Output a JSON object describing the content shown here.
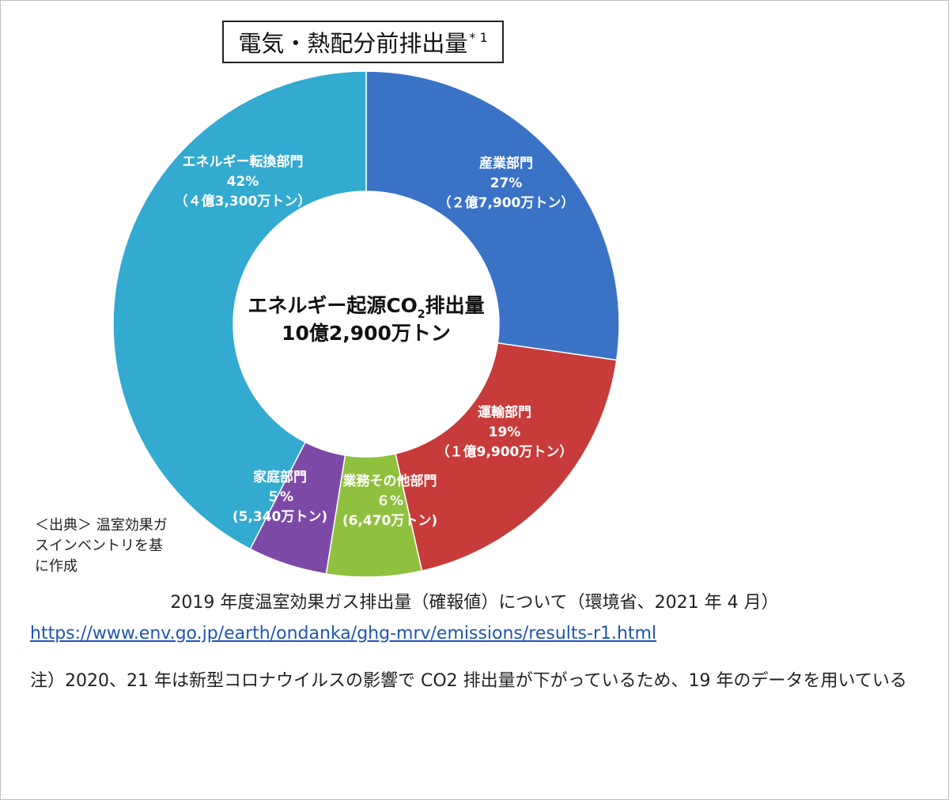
{
  "chart_title": "電気・熱配分前排出量",
  "chart_title_note": "* 1",
  "chart_data": {
    "type": "pie",
    "title": "電気・熱配分前排出量",
    "center_label_line1_a": "エネルギー起源CO",
    "center_label_line1_sub": "2",
    "center_label_line1_b": "排出量",
    "center_label_line2": "10億2,900万トン",
    "slices": [
      {
        "name": "産業部門",
        "percent_label": "27%",
        "amount_label": "（２億7,900万トン）",
        "percent": 27,
        "color": "#3a73c6"
      },
      {
        "name": "運輸部門",
        "percent_label": "19%",
        "amount_label": "（１億9,900万トン）",
        "percent": 19,
        "color": "#c83b3b"
      },
      {
        "name": "業務その他部門",
        "percent_label": "６%",
        "amount_label": "(6,470万トン)",
        "percent": 6,
        "color": "#8fc13e"
      },
      {
        "name": "家庭部門",
        "percent_label": "５%",
        "amount_label": "(5,340万トン)",
        "percent": 5,
        "color": "#7c4aa6"
      },
      {
        "name": "エネルギー転換部門",
        "percent_label": "42%",
        "amount_label": "（４億3,300万トン）",
        "percent": 42,
        "color": "#33aacf"
      }
    ]
  },
  "source_note": "＜出典＞ 温室効果ガスインベントリを基に作成",
  "caption": "2019 年度温室効果ガス排出量（確報値）について（環境省、2021 年 4 月）",
  "source_url": "https://www.env.go.jp/earth/ondanka/ghg-mrv/emissions/results-r1.html",
  "footnote": "注）2020、21 年は新型コロナウイルスの影響で CO2 排出量が下がっているため、19 年のデータを用いている"
}
